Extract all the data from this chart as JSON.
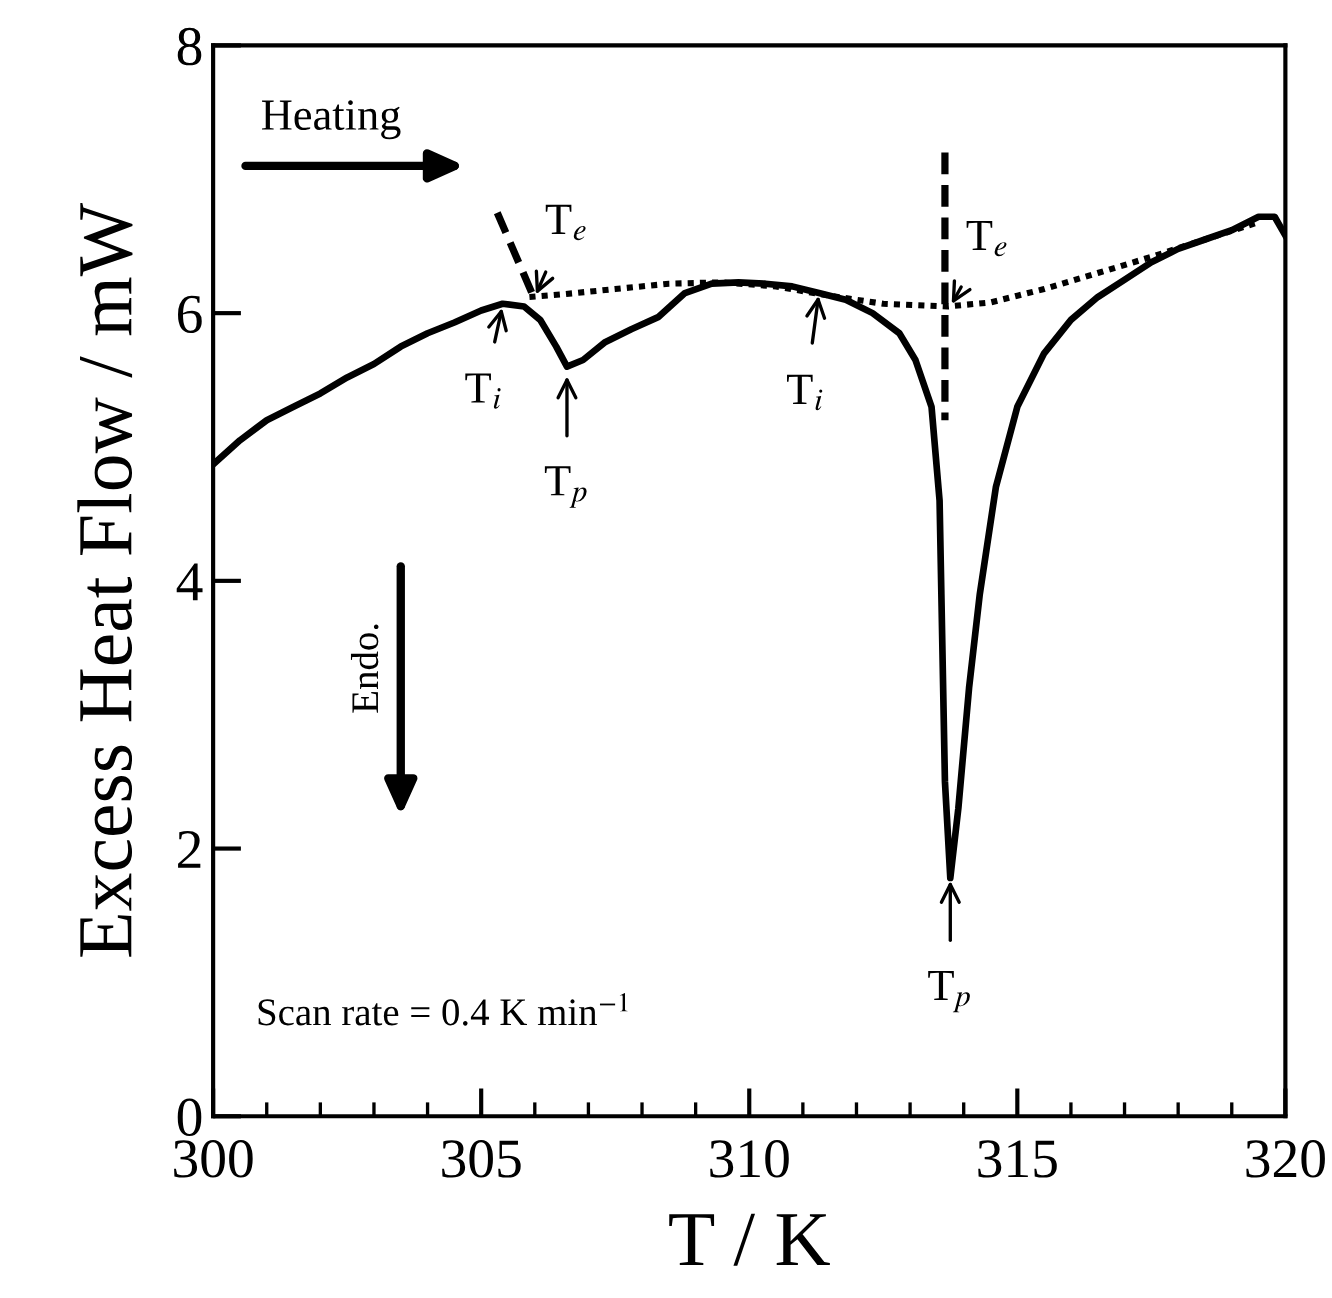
{
  "chart_data": {
    "type": "line",
    "xlabel": "T / K",
    "ylabel": "Excess Heat Flow / mW",
    "xlim": [
      300,
      320
    ],
    "ylim": [
      0,
      8
    ],
    "xticks": [
      300,
      305,
      310,
      315,
      320
    ],
    "yticks": [
      0,
      2,
      4,
      6,
      8
    ],
    "grid": false,
    "series": [
      {
        "color": "#000000",
        "line_style": "solid",
        "x": [
          300,
          300.5,
          301,
          301.5,
          302,
          302.5,
          303,
          303.5,
          304,
          304.5,
          305,
          305.4,
          305.8,
          306.1,
          306.4,
          306.6,
          306.9,
          307.3,
          307.8,
          308.3,
          308.8,
          309.3,
          309.8,
          310.3,
          310.8,
          311.3,
          311.8,
          312.3,
          312.8,
          313.1,
          313.4,
          313.55,
          313.65,
          313.75,
          313.9,
          314.1,
          314.3,
          314.6,
          315,
          315.5,
          316,
          316.5,
          317,
          317.5,
          318,
          318.5,
          319,
          319.5,
          319.8,
          320
        ],
        "values": [
          4.87,
          5.05,
          5.2,
          5.3,
          5.4,
          5.52,
          5.62,
          5.75,
          5.85,
          5.93,
          6.02,
          6.07,
          6.05,
          5.95,
          5.75,
          5.6,
          5.65,
          5.78,
          5.88,
          5.97,
          6.15,
          6.22,
          6.23,
          6.22,
          6.2,
          6.15,
          6.1,
          6.0,
          5.85,
          5.65,
          5.3,
          4.6,
          2.5,
          1.78,
          2.3,
          3.2,
          3.9,
          4.7,
          5.3,
          5.7,
          5.95,
          6.12,
          6.25,
          6.38,
          6.48,
          6.55,
          6.62,
          6.72,
          6.72,
          6.58
        ]
      },
      {
        "color": "#000000",
        "line_style": "dotted",
        "x": [
          305.9,
          306.5,
          307.5,
          308.5,
          309.5,
          310.5,
          311.5,
          312.5,
          313.7,
          314.5,
          315.5,
          316.5,
          317.5,
          318.5,
          319.5
        ],
        "values": [
          6.12,
          6.14,
          6.18,
          6.22,
          6.23,
          6.2,
          6.13,
          6.07,
          6.05,
          6.08,
          6.18,
          6.3,
          6.42,
          6.55,
          6.68
        ]
      },
      {
        "color": "#000000",
        "line_style": "dashed",
        "x": [
          305.3,
          306.0
        ],
        "values": [
          6.75,
          6.1
        ]
      },
      {
        "color": "#000000",
        "line_style": "dashed",
        "x": [
          313.65,
          313.65
        ],
        "values": [
          7.2,
          5.2
        ]
      }
    ],
    "annotations": [
      "Heating",
      "Endo.",
      "Scan rate = 0.4 K min$^{−1}$",
      {
        "text": "T$_{e}$",
        "x": 306.0,
        "y": 6.12
      },
      {
        "text": "T$_{i}$",
        "x": 305.4,
        "y": 6.06
      },
      {
        "text": "T$_{p}$",
        "x": 306.6,
        "y": 5.55
      },
      {
        "text": "T$_{i}$",
        "x": 311.3,
        "y": 6.15
      },
      {
        "text": "T$_{e}$",
        "x": 313.75,
        "y": 6.05
      },
      {
        "text": "T$_{p}$",
        "x": 313.75,
        "y": 1.78
      }
    ]
  }
}
